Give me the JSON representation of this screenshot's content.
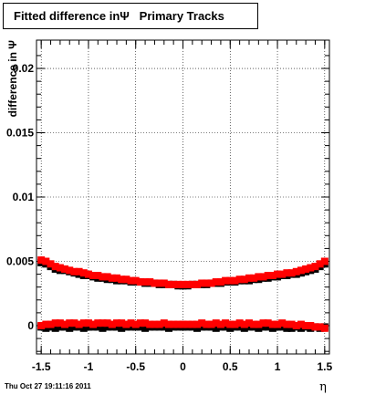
{
  "chart_data": {
    "type": "scatter",
    "title": "Fitted difference inΨ   Primary Tracks",
    "xlabel": "η",
    "ylabel": "difference in Ψ",
    "xlim": [
      -1.55,
      1.55
    ],
    "ylim": [
      -0.0022,
      0.0222
    ],
    "xticks": [
      -1.5,
      -1,
      -0.5,
      0,
      0.5,
      1,
      1.5
    ],
    "xtick_labels": [
      "-1.5",
      "-1",
      "-0.5",
      "0",
      "0.5",
      "1",
      "1.5"
    ],
    "yticks": [
      0,
      0.005,
      0.01,
      0.015,
      0.02
    ],
    "ytick_labels": [
      "0",
      "0.005",
      "0.01",
      "0.015",
      "0.02"
    ],
    "grid": true,
    "x": [
      -1.5,
      -1.45,
      -1.4,
      -1.35,
      -1.3,
      -1.25,
      -1.2,
      -1.15,
      -1.1,
      -1.05,
      -1,
      -0.95,
      -0.9,
      -0.85,
      -0.8,
      -0.75,
      -0.7,
      -0.65,
      -0.6,
      -0.55,
      -0.5,
      -0.45,
      -0.4,
      -0.35,
      -0.3,
      -0.25,
      -0.2,
      -0.15,
      -0.1,
      -0.05,
      0,
      0.05,
      0.1,
      0.15,
      0.2,
      0.25,
      0.3,
      0.35,
      0.4,
      0.45,
      0.5,
      0.55,
      0.6,
      0.65,
      0.7,
      0.75,
      0.8,
      0.85,
      0.9,
      0.95,
      1,
      1.05,
      1.1,
      1.15,
      1.2,
      1.25,
      1.3,
      1.35,
      1.4,
      1.45,
      1.5
    ],
    "series": [
      {
        "color": "#000000",
        "values": [
          0.0049,
          0.0048,
          0.0046,
          0.0044,
          0.0043,
          0.0043,
          0.0042,
          0.0041,
          0.004,
          0.0039,
          0.0039,
          0.0038,
          0.0037,
          0.0037,
          0.0036,
          0.0036,
          0.0035,
          0.0035,
          0.0035,
          0.0034,
          0.0034,
          0.0034,
          0.0033,
          0.0033,
          0.0033,
          0.0032,
          0.0032,
          0.0032,
          0.0032,
          0.0031,
          0.0031,
          0.0031,
          0.0032,
          0.0032,
          0.0032,
          0.0032,
          0.0033,
          0.0033,
          0.0033,
          0.0034,
          0.0034,
          0.0034,
          0.0035,
          0.0035,
          0.0035,
          0.0036,
          0.0036,
          0.0037,
          0.0037,
          0.0038,
          0.0038,
          0.0039,
          0.0039,
          0.004,
          0.004,
          0.0041,
          0.0042,
          0.0043,
          0.0044,
          0.0046,
          0.0048
        ]
      },
      {
        "color": "#ff0000",
        "values": [
          0.0051,
          0.005,
          0.0048,
          0.0046,
          0.0045,
          0.0044,
          0.0043,
          0.0042,
          0.0042,
          0.0041,
          0.004,
          0.0039,
          0.0039,
          0.0038,
          0.0038,
          0.0037,
          0.0037,
          0.0036,
          0.0036,
          0.0035,
          0.0035,
          0.0034,
          0.0034,
          0.0034,
          0.0033,
          0.0033,
          0.0033,
          0.0032,
          0.0032,
          0.0032,
          0.0032,
          0.0032,
          0.0032,
          0.0032,
          0.0033,
          0.0033,
          0.0033,
          0.0034,
          0.0034,
          0.0035,
          0.0035,
          0.0035,
          0.0036,
          0.0036,
          0.0037,
          0.0037,
          0.0038,
          0.0038,
          0.0039,
          0.0039,
          0.004,
          0.004,
          0.0041,
          0.0041,
          0.0042,
          0.0043,
          0.0044,
          0.0045,
          0.0046,
          0.0048,
          0.005
        ]
      },
      {
        "color": "#000000",
        "values": [
          -0.0001,
          -0.0002,
          -0.0001,
          -0.0002,
          -0.0001,
          -0.0001,
          -0.0002,
          -0.0001,
          -0.0001,
          -0.0002,
          -0.0001,
          -0.0001,
          -0.0001,
          -0.0002,
          -0.0001,
          -0.0001,
          -0.0001,
          -0.0002,
          -0.0001,
          -0.0001,
          -0.0001,
          -0.0001,
          -0.0002,
          -0.0001,
          -0.0001,
          -0.0001,
          -0.0001,
          -0.0002,
          -0.0001,
          -0.0001,
          -0.0001,
          -0.0001,
          -0.0001,
          -0.0002,
          -0.0001,
          -0.0001,
          -0.0001,
          -0.0002,
          -0.0001,
          -0.0001,
          -0.0002,
          -0.0001,
          -0.0001,
          -0.0002,
          -0.0001,
          -0.0001,
          -0.0002,
          -0.0001,
          -0.0001,
          -0.0002,
          -0.0001,
          -0.0001,
          -0.0002,
          -0.0002,
          -0.0001,
          -0.0002,
          -0.0001,
          -0.0002,
          -0.0001,
          -0.0002,
          -0.0001
        ]
      },
      {
        "color": "#ff0000",
        "values": [
          0.0,
          0.0001,
          0.0001,
          0.0002,
          0.0002,
          0.0001,
          0.0002,
          0.0002,
          0.0001,
          0.0002,
          0.0002,
          0.0001,
          0.0002,
          0.0002,
          0.0002,
          0.0001,
          0.0002,
          0.0002,
          0.0001,
          0.0002,
          0.0001,
          0.0002,
          0.0002,
          0.0001,
          0.0001,
          0.0001,
          0.0002,
          0.0001,
          0.0001,
          0.0001,
          0.0001,
          0.0001,
          0.0001,
          0.0001,
          0.0002,
          0.0001,
          0.0001,
          0.0002,
          0.0001,
          0.0002,
          0.0001,
          0.0001,
          0.0002,
          0.0001,
          0.0002,
          0.0001,
          0.0001,
          0.0002,
          0.0002,
          0.0001,
          0.0001,
          0.0002,
          0.0001,
          0.0001,
          0.0,
          0.0001,
          0.0,
          0.0,
          -0.0001,
          -0.0001,
          -0.0002
        ]
      }
    ]
  },
  "footer": {
    "timestamp": "Thu Oct 27 19:11:16 2011"
  }
}
